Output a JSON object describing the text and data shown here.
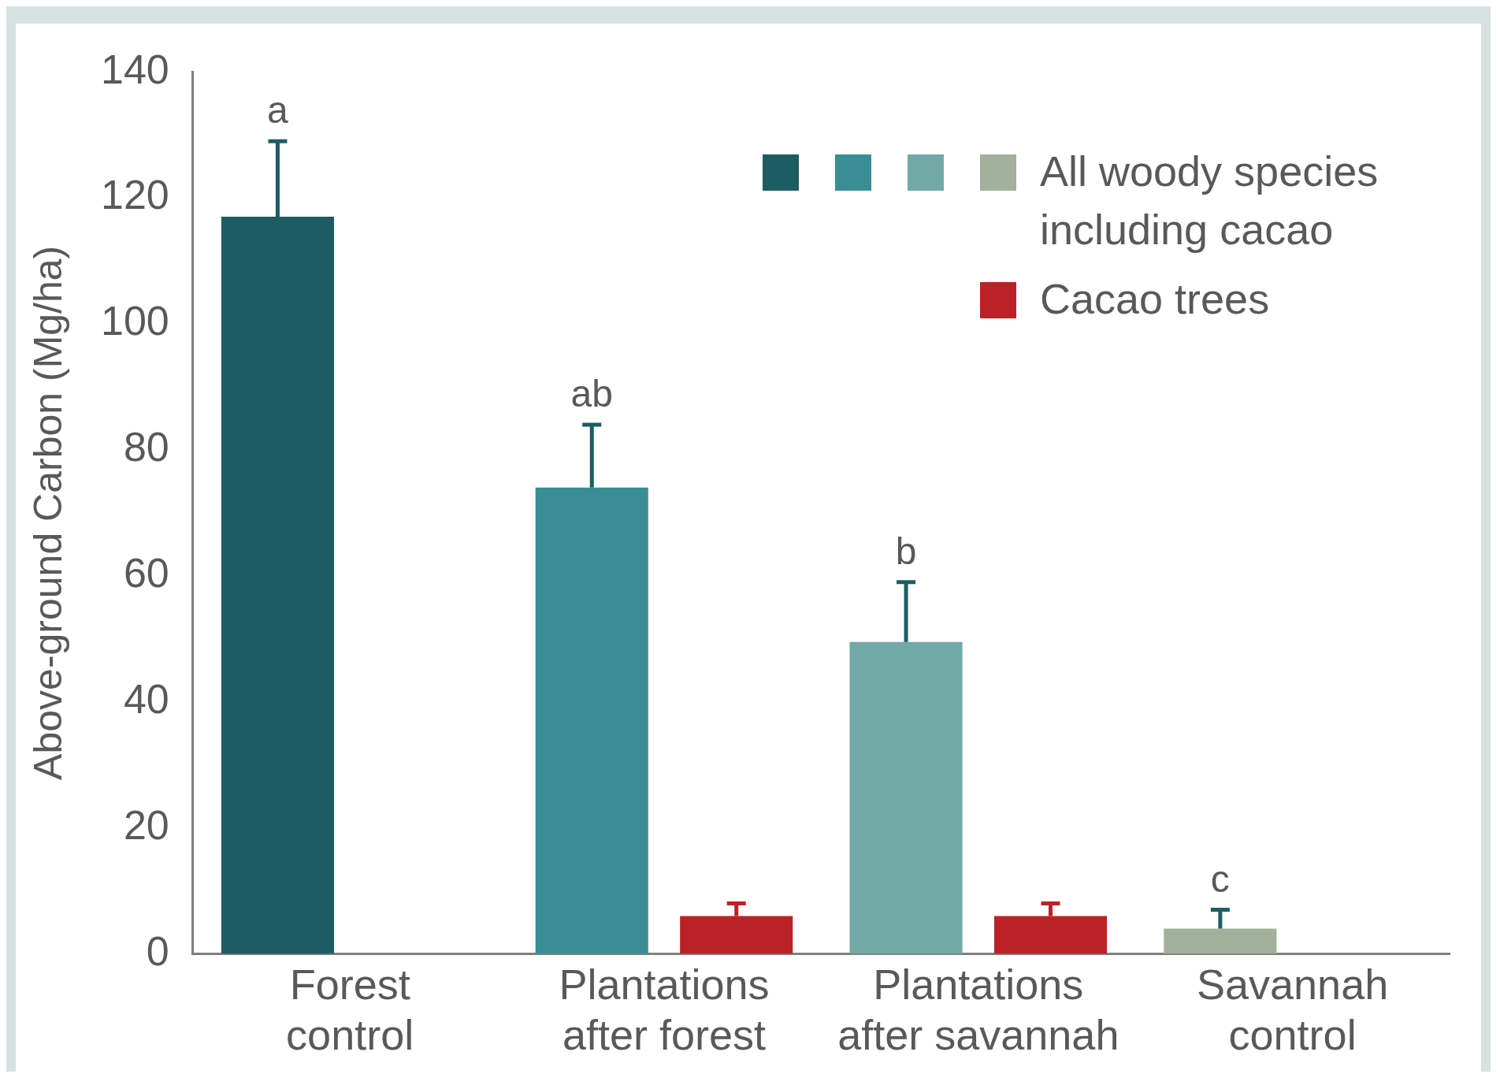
{
  "chart_data": {
    "type": "bar",
    "ylabel": "Above-ground Carbon (Mg/ha)",
    "categories": [
      "Forest control",
      "Plantations after forest",
      "Plantations after savannah",
      "Savannah control"
    ],
    "series": [
      {
        "name": "All woody species including cacao",
        "colors": [
          "#1d5c63",
          "#388e94",
          "#72a8a6",
          "#a2b09c"
        ],
        "values": [
          117,
          74,
          49.5,
          4
        ],
        "errors": [
          [
            117,
            129
          ],
          [
            74,
            84
          ],
          [
            49.5,
            59
          ],
          [
            4,
            7
          ]
        ]
      },
      {
        "name": "Cacao trees",
        "color": "#bb2227",
        "values": [
          null,
          6,
          6,
          null
        ],
        "errors": [
          null,
          [
            6,
            8
          ],
          [
            6,
            8
          ],
          null
        ]
      }
    ],
    "ylim": [
      0,
      140
    ],
    "yticks": [
      0,
      20,
      40,
      60,
      80,
      100,
      120,
      140
    ],
    "grid": false,
    "legend": "top right",
    "annotations": [
      "a",
      "ab",
      "b",
      "c"
    ]
  }
}
